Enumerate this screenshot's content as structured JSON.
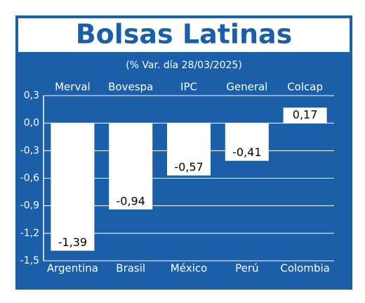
{
  "chart_data": {
    "type": "bar",
    "title": "Bolsas Latinas",
    "subtitle": "(% Var. día 28/03/2025)",
    "index_names": [
      "Merval",
      "Bovespa",
      "IPC",
      "General",
      "Colcap"
    ],
    "categories": [
      "Argentina",
      "Brasil",
      "México",
      "Perú",
      "Colombia"
    ],
    "values": [
      -1.39,
      -0.94,
      -0.57,
      -0.41,
      0.17
    ],
    "value_labels": [
      "-1,39",
      "-0,94",
      "-0,57",
      "-0,41",
      "0,17"
    ],
    "color": "#ffffff",
    "ylim": [
      -1.5,
      0.3
    ],
    "yticks": [
      {
        "value": 0.3,
        "label": "0,3"
      },
      {
        "value": 0,
        "label": "0,0"
      },
      {
        "value": -0.3,
        "label": "-0,3"
      },
      {
        "value": -0.6,
        "label": "-0,6"
      },
      {
        "value": -0.9,
        "label": "-0,9"
      },
      {
        "value": -1.2,
        "label": "-1,2"
      },
      {
        "value": -1.5,
        "label": "-1,5"
      }
    ],
    "grid": true
  }
}
